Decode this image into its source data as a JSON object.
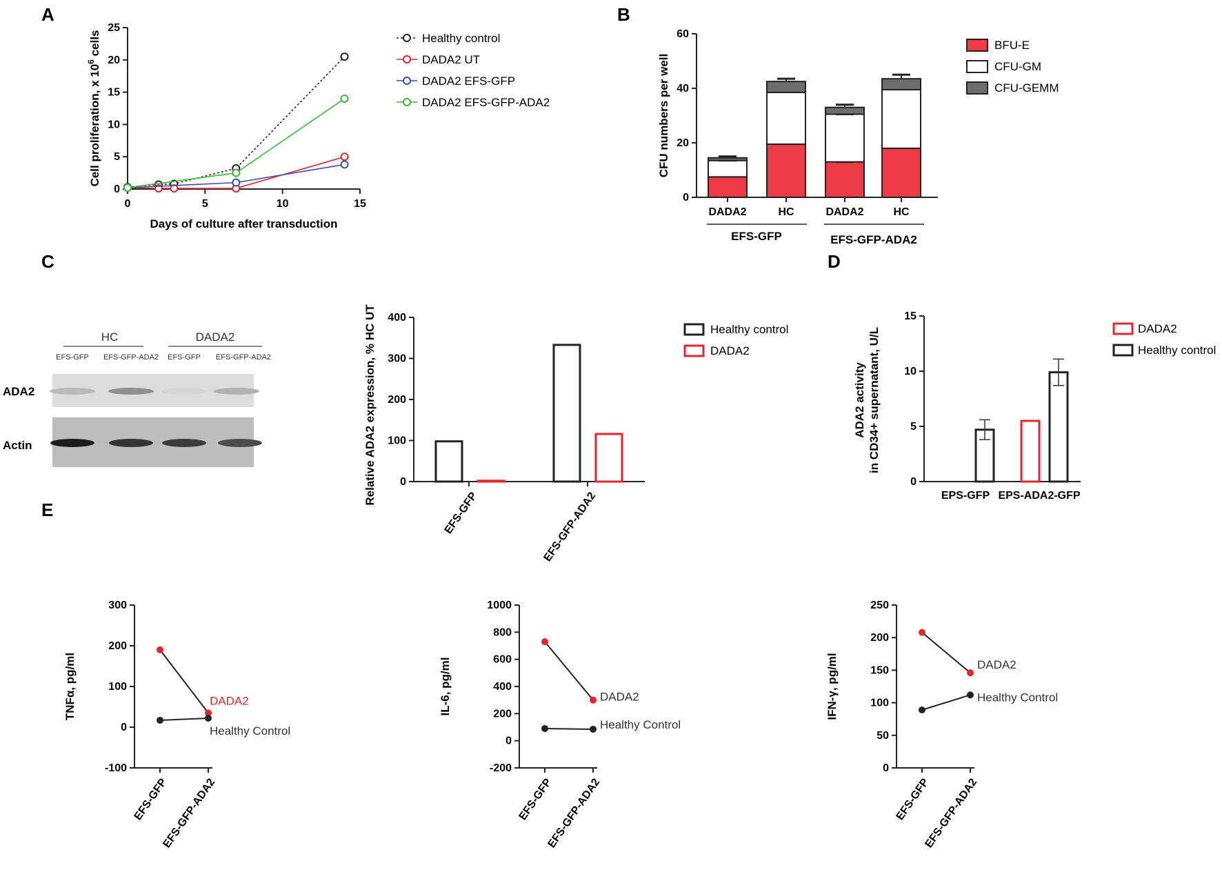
{
  "panels": {
    "A": "A",
    "B": "B",
    "C": "C",
    "D": "D",
    "E": "E"
  },
  "colors": {
    "black": "#222222",
    "red": "#e8252e",
    "blue": "#3a4db0",
    "green": "#3db83a",
    "gray": "#6d6d6d",
    "bar_red": "#ef3b45"
  },
  "chart_data": [
    {
      "id": "A",
      "type": "line",
      "xlabel": "Days of culture after transduction",
      "ylabel": "Cell proliferation, x 10",
      "ylabel_sup": "6",
      "ylabel_suffix": " cells",
      "xlim": [
        0,
        15
      ],
      "ylim": [
        0,
        25
      ],
      "xticks": [
        "0",
        "5",
        "10",
        "15"
      ],
      "yticks": [
        "0",
        "5",
        "10",
        "15",
        "20",
        "25"
      ],
      "series": [
        {
          "name": "Healthy control",
          "color": "#222222",
          "dashed": true,
          "x": [
            0,
            2,
            3,
            7,
            14
          ],
          "y": [
            0.3,
            0.7,
            0.8,
            3.2,
            20.5
          ]
        },
        {
          "name": "DADA2 UT",
          "color": "#e8252e",
          "dashed": false,
          "x": [
            0,
            2,
            3,
            7,
            14
          ],
          "y": [
            0.2,
            0.1,
            0.1,
            0.1,
            5.0
          ]
        },
        {
          "name": "DADA2 EFS-GFP",
          "color": "#3a4db0",
          "dashed": false,
          "x": [
            0,
            7,
            14
          ],
          "y": [
            0.2,
            1.0,
            3.8
          ]
        },
        {
          "name": "DADA2 EFS-GFP-ADA2",
          "color": "#3db83a",
          "dashed": false,
          "x": [
            0,
            7,
            14
          ],
          "y": [
            0.2,
            2.5,
            14.0
          ]
        }
      ]
    },
    {
      "id": "B",
      "type": "bar",
      "stacked": true,
      "ylabel": "CFU numbers per well",
      "ylim": [
        0,
        60
      ],
      "yticks": [
        "0",
        "20",
        "40",
        "60"
      ],
      "categories": [
        "DADA2",
        "HC",
        "DADA2",
        "HC"
      ],
      "groups": [
        "EFS-GFP",
        "EFS-GFP-ADA2"
      ],
      "series": [
        {
          "name": "BFU-E",
          "color": "#ef3b45",
          "values": [
            7.5,
            19.5,
            13,
            18
          ],
          "err": [
            0.5,
            0.5,
            0,
            1
          ]
        },
        {
          "name": "CFU-GM",
          "color": "#ffffff",
          "values": [
            6,
            19,
            17.5,
            21.5
          ],
          "err": [
            0,
            2.5,
            0,
            3.5
          ]
        },
        {
          "name": "CFU-GEMM",
          "color": "#6d6d6d",
          "values": [
            1,
            4,
            2.5,
            4
          ],
          "err": [
            0.5,
            1,
            1,
            1.5
          ]
        }
      ]
    },
    {
      "id": "C",
      "type": "bar",
      "ylabel": "Relative ADA2 expression, % HC UT",
      "ylim": [
        0,
        400
      ],
      "yticks": [
        "0",
        "100",
        "200",
        "300",
        "400"
      ],
      "categories": [
        "EFS-GFP",
        "EFS-GFP-ADA2"
      ],
      "series": [
        {
          "name": "Healthy control",
          "color": "#222222",
          "values": [
            98,
            333
          ]
        },
        {
          "name": "DADA2",
          "color": "#e8252e",
          "values": [
            2,
            116
          ]
        }
      ]
    },
    {
      "id": "D",
      "type": "bar",
      "ylabel": "ADA2 activity",
      "ylabel2": "in CD34+ supernatant, U/L",
      "ylim": [
        0,
        15
      ],
      "yticks": [
        "0",
        "5",
        "10",
        "15"
      ],
      "categories": [
        "EPS-GFP",
        "EPS-ADA2-GFP"
      ],
      "series": [
        {
          "name": "DADA2",
          "color": "#e8252e",
          "values": [
            null,
            5.5
          ],
          "err": [
            0,
            0
          ]
        },
        {
          "name": "Healthy control",
          "color": "#222222",
          "values": [
            4.7,
            9.9
          ],
          "err": [
            0.9,
            1.2
          ]
        }
      ]
    },
    {
      "id": "E1",
      "type": "line",
      "ylabel": "TNFα, pg/ml",
      "ylim": [
        -100,
        300
      ],
      "yticks": [
        "-100",
        "0",
        "100",
        "200",
        "300"
      ],
      "categories": [
        "EFS-GFP",
        "EFS-GFP-ADA2"
      ],
      "series": [
        {
          "name": "DADA2",
          "color": "#e8252e",
          "label_color": "#e8252e",
          "values": [
            190,
            35
          ]
        },
        {
          "name": "Healthy Control",
          "color": "#222222",
          "label_color": "#333333",
          "values": [
            17,
            22
          ]
        }
      ]
    },
    {
      "id": "E2",
      "type": "line",
      "ylabel": "IL-6, pg/ml",
      "ylim": [
        -200,
        1000
      ],
      "yticks": [
        "-200",
        "0",
        "200",
        "400",
        "600",
        "800",
        "1000"
      ],
      "categories": [
        "EFS-GFP",
        "EFS-GFP-ADA2"
      ],
      "series": [
        {
          "name": "DADA2",
          "color": "#e8252e",
          "label_color": "#333333",
          "values": [
            730,
            300
          ]
        },
        {
          "name": "Healthy Control",
          "color": "#222222",
          "label_color": "#333333",
          "values": [
            90,
            85
          ]
        }
      ]
    },
    {
      "id": "E3",
      "type": "line",
      "ylabel": "IFN-γ, pg/ml",
      "ylim": [
        0,
        250
      ],
      "yticks": [
        "0",
        "50",
        "100",
        "150",
        "200",
        "250"
      ],
      "categories": [
        "EFS-GFP",
        "EFS-GFP-ADA2"
      ],
      "series": [
        {
          "name": "DADA2",
          "color": "#e8252e",
          "label_color": "#333333",
          "values": [
            208,
            146
          ]
        },
        {
          "name": "Healthy Control",
          "color": "#222222",
          "label_color": "#333333",
          "values": [
            89,
            112
          ]
        }
      ]
    }
  ],
  "blot": {
    "group_labels": [
      "HC",
      "DADA2"
    ],
    "lane_labels": [
      "EFS-GFP",
      "EFS-GFP-ADA2",
      "EFS-GFP",
      "EFS-GFP-ADA2"
    ],
    "row_labels": [
      "ADA2",
      "Actin"
    ],
    "ada2_intensity": [
      0.25,
      0.55,
      0.05,
      0.3
    ],
    "actin_intensity": [
      0.95,
      0.8,
      0.75,
      0.65
    ]
  }
}
